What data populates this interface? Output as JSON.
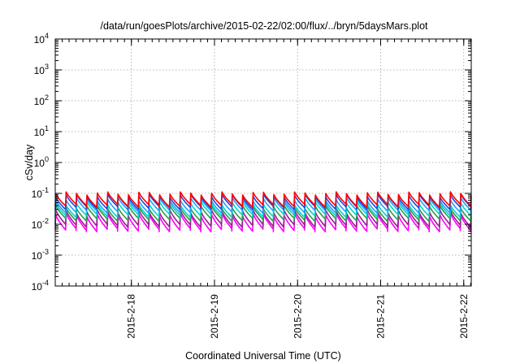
{
  "chart_data": {
    "type": "line",
    "title": "/data/run/goesPlots/archive/2015-02-22/02:00/flux/../bryn/5daysMars.plot",
    "xlabel": "Coordinated Universal Time (UTC)",
    "ylabel": "cSv/day",
    "yscale": "log",
    "ylim": [
      0.0001,
      10000
    ],
    "xlim": [
      "2015-02-17 02:00",
      "2015-02-22 02:10"
    ],
    "grid": true,
    "y_ticks": [
      {
        "base": "10",
        "exp": "-4"
      },
      {
        "base": "10",
        "exp": "-3"
      },
      {
        "base": "10",
        "exp": "-2"
      },
      {
        "base": "10",
        "exp": "-1"
      },
      {
        "base": "10",
        "exp": "0"
      },
      {
        "base": "10",
        "exp": "1"
      },
      {
        "base": "10",
        "exp": "2"
      },
      {
        "base": "10",
        "exp": "3"
      },
      {
        "base": "10",
        "exp": "4"
      }
    ],
    "x_ticks": [
      {
        "label": "2015-2-18",
        "date": "2015-02-18 00:00"
      },
      {
        "label": "2015-2-19",
        "date": "2015-02-19 00:00"
      },
      {
        "label": "2015-2-20",
        "date": "2015-02-20 00:00"
      },
      {
        "label": "2015-2-21",
        "date": "2015-02-21 00:00"
      },
      {
        "label": "2015-2-22",
        "date": "2015-02-22 00:00"
      }
    ],
    "sawtooth_period_hours": 3,
    "series": [
      {
        "color": "#ff0000",
        "peak": 0.1,
        "trough": 0.04
      },
      {
        "color": "#2244dd",
        "peak": 0.085,
        "trough": 0.034
      },
      {
        "color": "#1e9fff",
        "peak": 0.065,
        "trough": 0.026
      },
      {
        "color": "#00d5cc",
        "peak": 0.048,
        "trough": 0.019
      },
      {
        "color": "#2e9b4b",
        "peak": 0.036,
        "trough": 0.014
      },
      {
        "color": "#9a1e90",
        "peak": 0.026,
        "trough": 0.009
      },
      {
        "color": "#ff00ff",
        "peak": 0.02,
        "trough": 0.0065
      }
    ]
  }
}
